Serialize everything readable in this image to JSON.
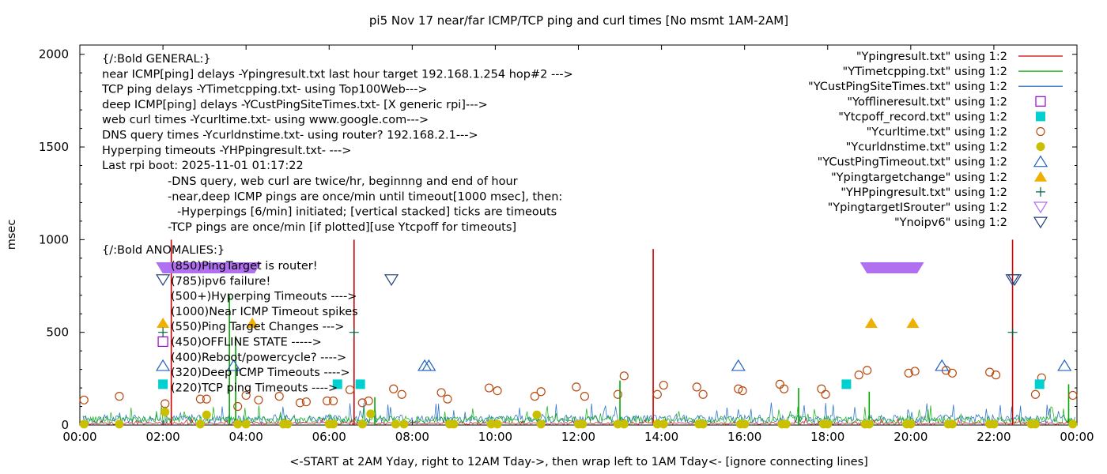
{
  "chart_data": {
    "type": "line",
    "title": "pi5 Nov 17  near/far ICMP/TCP ping and curl times [No msmt 1AM-2AM]",
    "xlabel": "<-START at 2AM Yday, right to 12AM Tday->, then wrap left to 1AM Tday<- [ignore connecting lines]",
    "ylabel": "msec",
    "xlim": [
      0,
      24
    ],
    "ylim": [
      0,
      2050
    ],
    "x_ticks": [
      "00:00",
      "02:00",
      "04:00",
      "06:00",
      "08:00",
      "10:00",
      "12:00",
      "14:00",
      "16:00",
      "18:00",
      "20:00",
      "22:00",
      "00:00"
    ],
    "y_ticks": [
      "0",
      "500",
      "1000",
      "1500",
      "2000"
    ],
    "legend_position": "top-right",
    "legend": [
      {
        "label": "\"Ypingresult.txt\" using 1:2",
        "color": "#cc0000",
        "marker": "line"
      },
      {
        "label": "\"YTimetcpping.txt\" using 1:2",
        "color": "#00aa00",
        "marker": "line"
      },
      {
        "label": "\"YCustPingSiteTimes.txt\" using 1:2",
        "color": "#1060c0",
        "marker": "line"
      },
      {
        "label": "\"Yofflineresult.txt\" using 1:2",
        "color": "#9400d3",
        "marker": "open-square"
      },
      {
        "label": "\"Ytcpoff_record.txt\" using 1:2",
        "color": "#00d0d0",
        "marker": "filled-square"
      },
      {
        "label": "\"Ycurltime.txt\" using 1:2",
        "color": "#b84a10",
        "marker": "open-circle"
      },
      {
        "label": "\"Ycurldnstime.txt\" using 1:2",
        "color": "#c8c000",
        "marker": "filled-circle"
      },
      {
        "label": "\"YCustPingTimeout.txt\" using 1:2",
        "color": "#2060c0",
        "marker": "open-triangle"
      },
      {
        "label": "\"Ypingtargetchange\" using 1:2",
        "color": "#f0b000",
        "marker": "filled-triangle"
      },
      {
        "label": "\"YHPpingresult.txt\" using 1:2",
        "color": "#006040",
        "marker": "plus"
      },
      {
        "label": "\"YpingtargetISrouter\" using 1:2",
        "color": "#b070f0",
        "marker": "open-down-triangle"
      },
      {
        "label": "\"Ynoipv6\" using 1:2",
        "color": "#204080",
        "marker": "open-down-triangle"
      }
    ],
    "notes": [
      "{/:Bold GENERAL:}",
      "near ICMP[ping] delays -Ypingresult.txt last hour target 192.168.1.254 hop#2 --->",
      "TCP ping delays -YTimetcpping.txt- using Top100Web--->",
      "deep ICMP[ping] delays -YCustPingSiteTimes.txt- [X generic rpi]--->",
      "web curl times -Ycurltime.txt- using www.google.com--->",
      "DNS query times -Ycurldnstime.txt- using router? 192.168.2.1--->",
      "Hyperping timeouts -YHPpingresult.txt- --->",
      "Last rpi boot: 2025-11-01 01:17:22",
      "-DNS query, web curl are twice/hr, beginnng and end of hour",
      "-near,deep ICMP pings are once/min until timeout[1000 msec], then:",
      "-Hyperpings [6/min] initiated; [vertical stacked] ticks are timeouts",
      "-TCP pings are once/min [if plotted][use Ytcpoff for timeouts]",
      "{/:Bold ANOMALIES:}",
      "(850)PingTarget is router!",
      "(785)ipv6 failure!",
      "(500+)Hyperping Timeouts ---->",
      "(1000)Near ICMP Timeout spikes",
      "(550)Ping Target Changes --->",
      "(450)OFFLINE STATE ----->",
      "(400)Reboot/powercycle? ---->",
      "(320)Deep ICMP Timeouts ---->",
      "(220)TCP ping Timeouts ---->"
    ],
    "series": [
      {
        "name": "\"Ypingresult.txt\" using 1:2",
        "kind": "spikes",
        "x": [
          2.2,
          6.6,
          13.8,
          22.45
        ],
        "y": [
          1000,
          1000,
          950,
          1000
        ]
      },
      {
        "name": "\"YTimetcpping.txt\" using 1:2",
        "kind": "spikes",
        "x": [
          3.6,
          3.75,
          7.1,
          13.0,
          17.3,
          19.0,
          23.8
        ],
        "y": [
          700,
          480,
          150,
          240,
          200,
          180,
          220
        ]
      },
      {
        "name": "\"Ycurltime.txt\" using 1:2",
        "kind": "points",
        "x": [
          0.1,
          0.95,
          2.05,
          2.9,
          3.05,
          3.8,
          4.0,
          4.3,
          4.8,
          5.3,
          5.45,
          5.95,
          6.1,
          6.5,
          6.8,
          6.95,
          7.55,
          7.75,
          8.7,
          8.85,
          9.85,
          10.05,
          10.95,
          11.1,
          11.95,
          12.15,
          12.95,
          13.1,
          13.9,
          14.05,
          14.85,
          15.0,
          15.85,
          15.95,
          16.85,
          16.95,
          17.85,
          17.95,
          18.75,
          18.95,
          19.95,
          20.1,
          20.85,
          21.0,
          21.9,
          22.05,
          23.0,
          23.15,
          23.9
        ],
        "y": [
          135,
          155,
          115,
          140,
          140,
          100,
          160,
          135,
          155,
          120,
          125,
          130,
          130,
          190,
          120,
          130,
          195,
          165,
          175,
          140,
          200,
          185,
          155,
          180,
          205,
          155,
          165,
          265,
          165,
          215,
          205,
          165,
          195,
          185,
          220,
          195,
          195,
          165,
          270,
          295,
          280,
          290,
          295,
          280,
          285,
          270,
          165,
          255,
          160
        ]
      },
      {
        "name": "\"Ycurldnstime.txt\" using 1:2",
        "kind": "points",
        "x": [
          0.1,
          0.95,
          2.05,
          2.9,
          3.05,
          3.8,
          4.0,
          4.9,
          5.0,
          6.0,
          6.1,
          6.8,
          7.0,
          7.6,
          7.8,
          8.9,
          9.0,
          9.9,
          10.05,
          11.0,
          11.1,
          12.0,
          12.1,
          12.95,
          13.1,
          13.9,
          14.05,
          14.9,
          15.0,
          15.9,
          16.0,
          16.9,
          17.0,
          17.9,
          18.0,
          18.9,
          19.0,
          19.9,
          20.0,
          20.9,
          21.0,
          21.9,
          22.0,
          22.9,
          23.0,
          23.9
        ],
        "y": [
          5,
          5,
          70,
          5,
          55,
          5,
          5,
          5,
          5,
          5,
          5,
          5,
          60,
          5,
          5,
          5,
          5,
          5,
          5,
          55,
          5,
          5,
          5,
          5,
          5,
          5,
          5,
          5,
          5,
          5,
          5,
          5,
          5,
          5,
          5,
          5,
          5,
          5,
          5,
          5,
          5,
          5,
          5,
          5,
          5,
          5
        ]
      },
      {
        "name": "\"Ytcpoff_record.txt\" using 1:2",
        "kind": "points",
        "x": [
          2.0,
          6.2,
          6.75,
          18.45,
          23.1
        ],
        "y": [
          220,
          220,
          220,
          220,
          220
        ]
      },
      {
        "name": "\"YCustPingTimeout.txt\" using 1:2",
        "kind": "points",
        "x": [
          2.0,
          3.7,
          8.3,
          8.4,
          15.85,
          20.75,
          23.7
        ],
        "y": [
          320,
          320,
          320,
          320,
          320,
          320,
          320
        ]
      },
      {
        "name": "\"Ypingtargetchange\" using 1:2",
        "kind": "points",
        "x": [
          2.0,
          4.15,
          19.05,
          20.05
        ],
        "y": [
          550,
          550,
          550,
          550
        ]
      },
      {
        "name": "\"YHPpingresult.txt\" using 1:2",
        "kind": "points",
        "x": [
          2.0,
          6.6,
          22.45
        ],
        "y": [
          500,
          500,
          500
        ]
      },
      {
        "name": "\"Yofflineresult.txt\" using 1:2",
        "kind": "points",
        "x": [
          2.0
        ],
        "y": [
          450
        ]
      },
      {
        "name": "\"YpingtargetISrouter\" using 1:2",
        "kind": "band",
        "x": [
          2.0,
          4.2,
          18.95,
          20.15
        ],
        "y": [
          850,
          850,
          850,
          850
        ]
      },
      {
        "name": "\"Ynoipv6\" using 1:2",
        "kind": "points",
        "x": [
          2.0,
          7.5,
          22.45,
          22.5
        ],
        "y": [
          785,
          785,
          785,
          785
        ]
      }
    ]
  }
}
